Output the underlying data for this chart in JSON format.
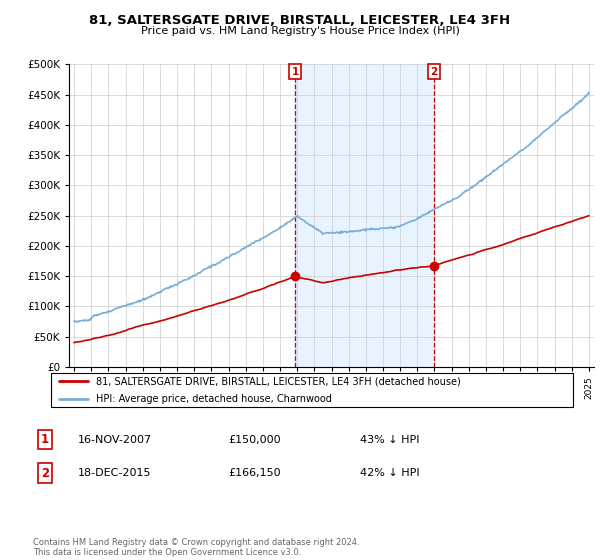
{
  "title": "81, SALTERSGATE DRIVE, BIRSTALL, LEICESTER, LE4 3FH",
  "subtitle": "Price paid vs. HM Land Registry's House Price Index (HPI)",
  "hpi_label": "HPI: Average price, detached house, Charnwood",
  "property_label": "81, SALTERSGATE DRIVE, BIRSTALL, LEICESTER, LE4 3FH (detached house)",
  "hpi_color": "#7aadd4",
  "property_color": "#cc0000",
  "dashed_line_color": "#cc0000",
  "shaded_color": "#ddeeff",
  "ylim": [
    0,
    500000
  ],
  "yticks": [
    0,
    50000,
    100000,
    150000,
    200000,
    250000,
    300000,
    350000,
    400000,
    450000,
    500000
  ],
  "sale1_date": "16-NOV-2007",
  "sale1_price": 150000,
  "sale1_label": "1",
  "sale1_year": 2007.88,
  "sale2_date": "18-DEC-2015",
  "sale2_price": 166150,
  "sale2_label": "2",
  "sale2_year": 2015.96,
  "footnote": "Contains HM Land Registry data © Crown copyright and database right 2024.\nThis data is licensed under the Open Government Licence v3.0.",
  "background_color": "#ffffff",
  "grid_color": "#cccccc"
}
